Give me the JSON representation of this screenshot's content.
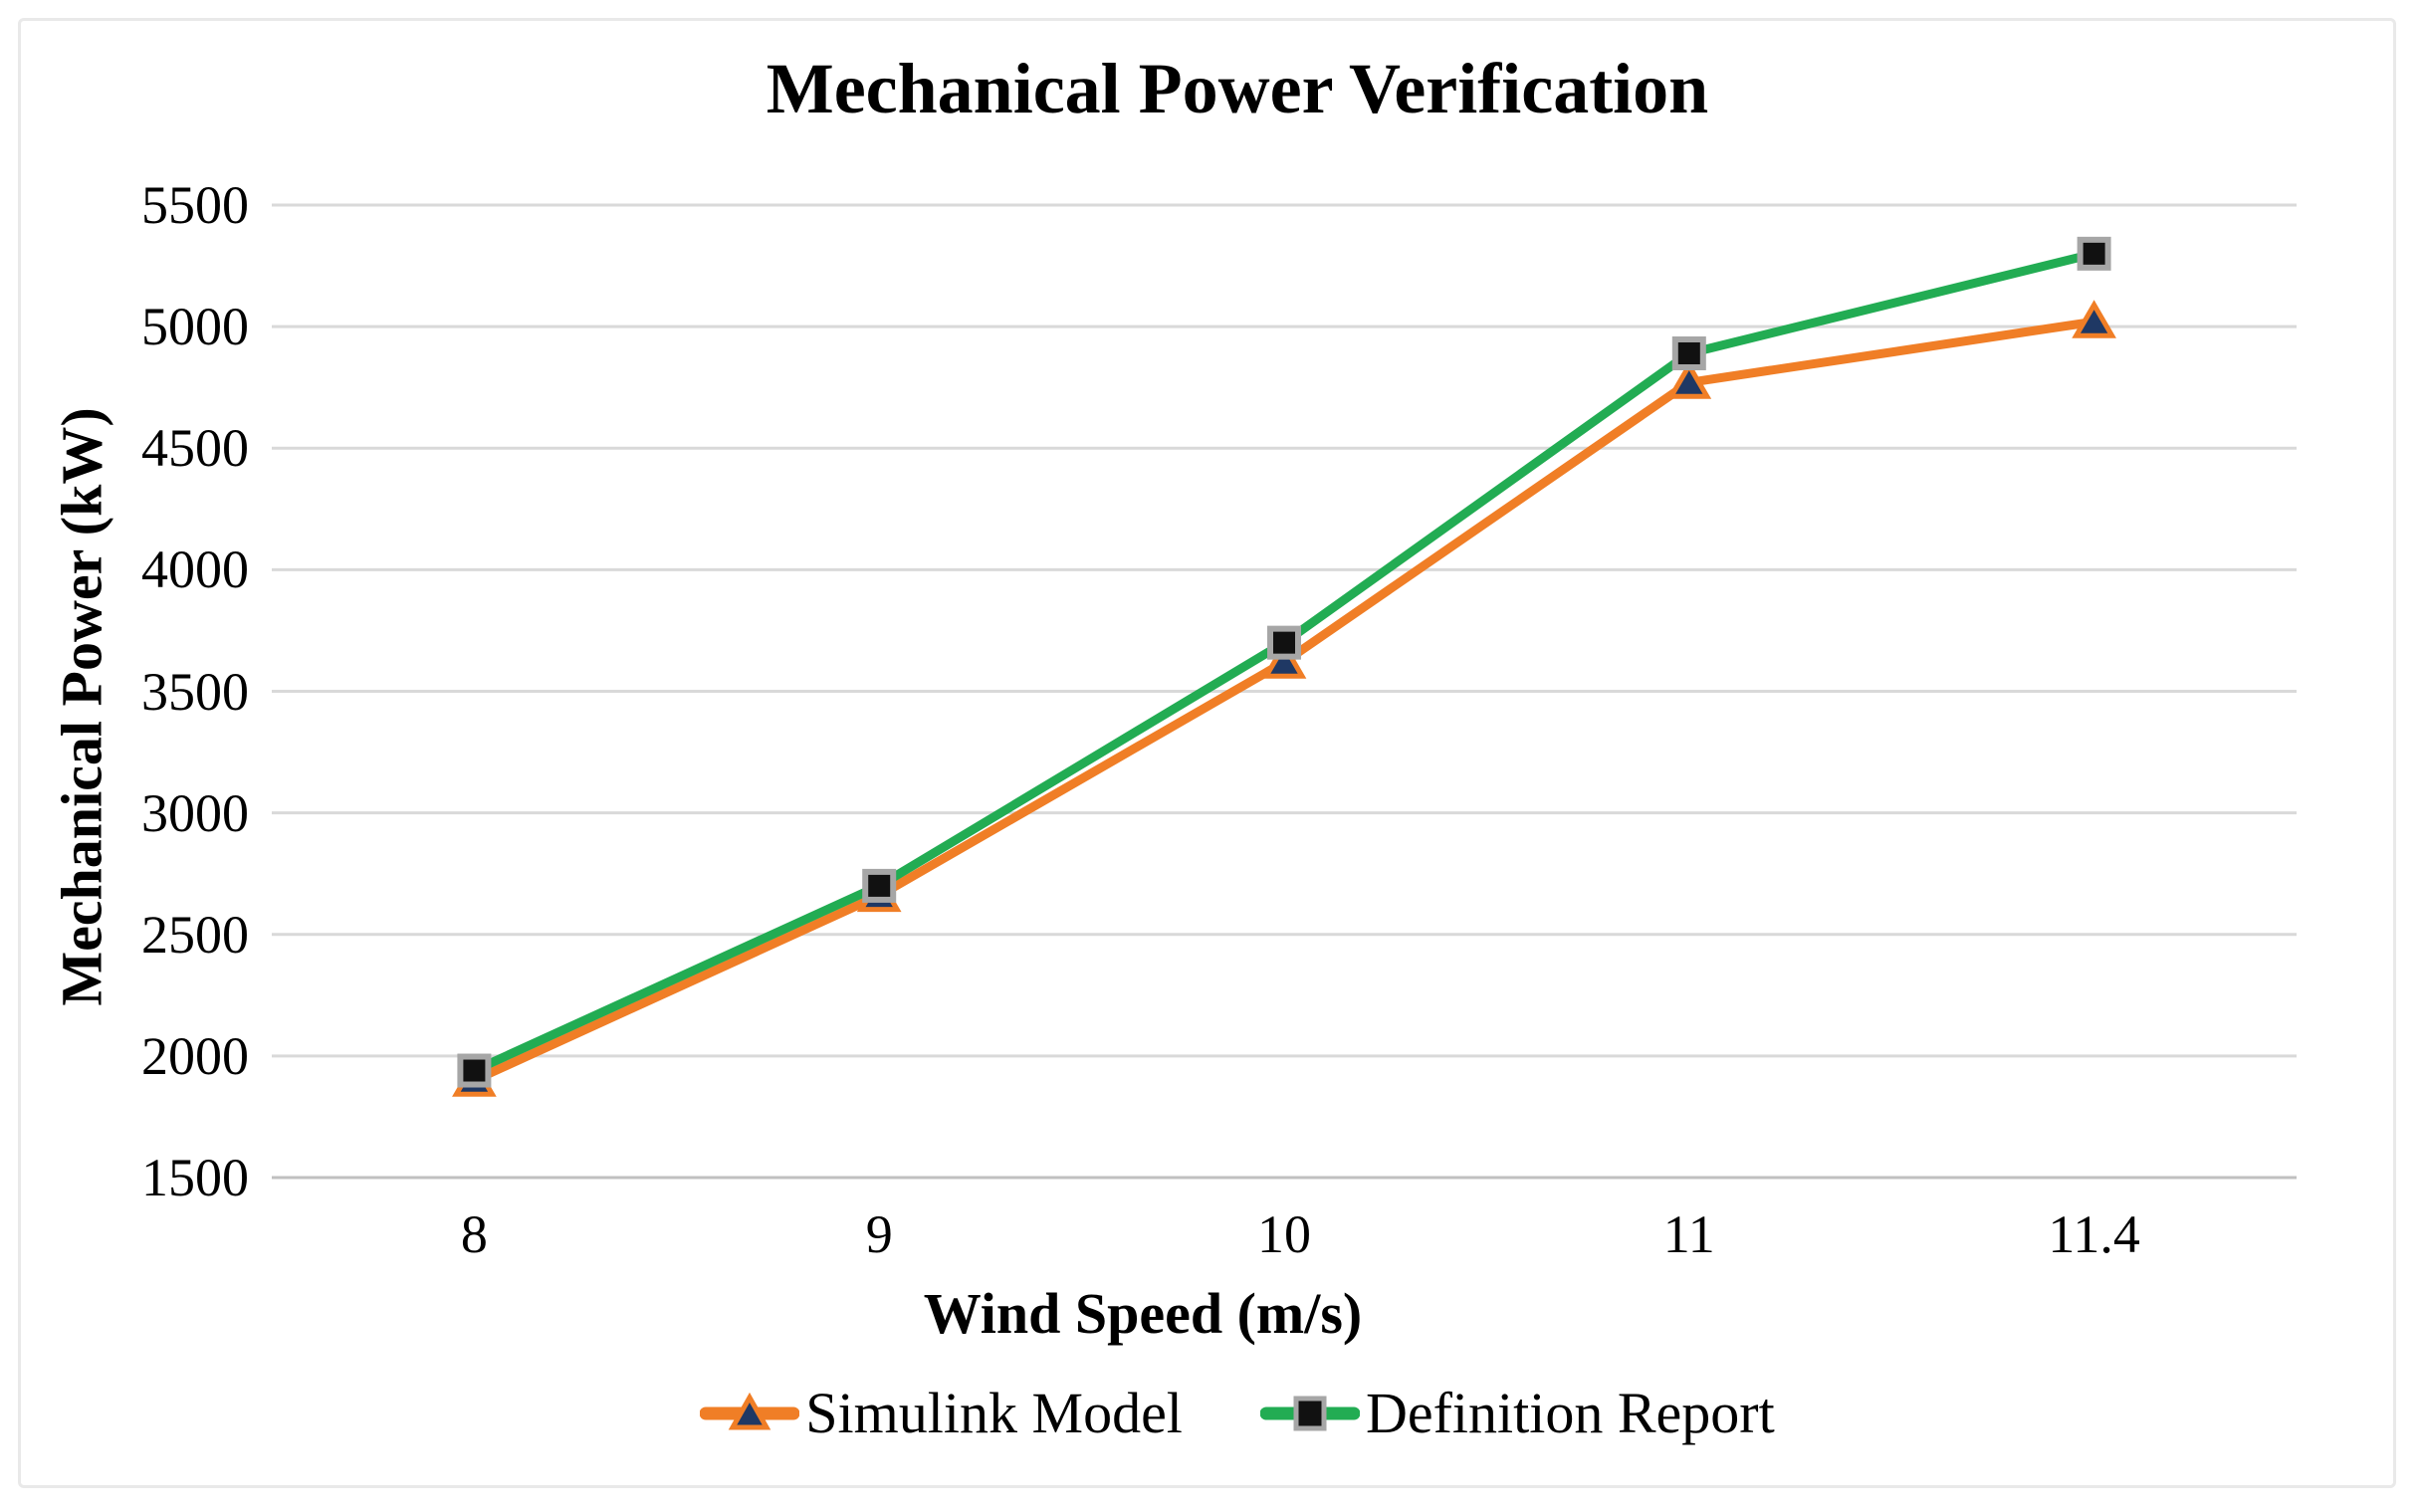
{
  "figure": {
    "background": "#ffffff",
    "border_color": "#e9e9e9"
  },
  "chart_data": {
    "type": "line",
    "title": "Mechanical Power Verification",
    "xlabel": "Wind Speed (m/s)",
    "ylabel": "Mechanical Power (kW)",
    "categories": [
      "8",
      "9",
      "10",
      "11",
      "11.4"
    ],
    "series": [
      {
        "name": "Simulink Model",
        "line_color": "#F07E26",
        "marker": "triangle",
        "marker_fill": "#1F3864",
        "marker_stroke": "#F07E26",
        "values": [
          1900,
          2660,
          3620,
          4770,
          5020
        ]
      },
      {
        "name": "Definition Report",
        "line_color": "#22AC53",
        "marker": "square",
        "marker_fill": "#111111",
        "marker_stroke": "#A6A6A6",
        "values": [
          1940,
          2700,
          3700,
          4890,
          5300
        ]
      }
    ],
    "ylim": [
      1500,
      5500
    ],
    "y_ticks": [
      1500,
      2000,
      2500,
      3000,
      3500,
      4000,
      4500,
      5000,
      5500
    ],
    "grid": "horizontal",
    "gridline_color": "#d9d9d9",
    "axis_line_color": "#c0c0c0",
    "legend_position": "bottom"
  }
}
